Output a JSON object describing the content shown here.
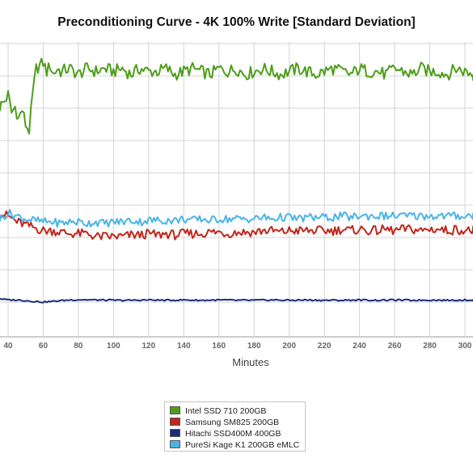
{
  "chart_data": {
    "type": "line",
    "title": "Preconditioning Curve - 4K 100% Write [Standard Deviation]",
    "xlabel": "Minutes",
    "ylabel": "",
    "x_ticks": [
      40,
      60,
      80,
      100,
      120,
      140,
      160,
      180,
      200,
      220,
      240,
      260,
      280,
      300
    ],
    "xlim": [
      35,
      310
    ],
    "ylim": [
      0,
      100
    ],
    "grid": true,
    "legend_position": "bottom",
    "series": [
      {
        "name": "Intel SSD 710 200GB",
        "color": "#4d9e1a",
        "points": [
          [
            35,
            78
          ],
          [
            38,
            80
          ],
          [
            40,
            82
          ],
          [
            42,
            76
          ],
          [
            44,
            78
          ],
          [
            46,
            74
          ],
          [
            48,
            77
          ],
          [
            50,
            72
          ],
          [
            52,
            70
          ],
          [
            54,
            82
          ],
          [
            56,
            91
          ],
          [
            58,
            92
          ],
          [
            60,
            93
          ],
          [
            62,
            90
          ],
          [
            64,
            92
          ],
          [
            66,
            89
          ],
          [
            68,
            91
          ],
          [
            70,
            90
          ],
          [
            75,
            91
          ],
          [
            80,
            89
          ],
          [
            85,
            91
          ],
          [
            90,
            90
          ],
          [
            95,
            91
          ],
          [
            100,
            90
          ],
          [
            105,
            91
          ],
          [
            110,
            89
          ],
          [
            115,
            91
          ],
          [
            120,
            90
          ],
          [
            125,
            90
          ],
          [
            130,
            91
          ],
          [
            135,
            89
          ],
          [
            140,
            90
          ],
          [
            145,
            91
          ],
          [
            150,
            90
          ],
          [
            155,
            89
          ],
          [
            160,
            91
          ],
          [
            165,
            90
          ],
          [
            170,
            91
          ],
          [
            175,
            89
          ],
          [
            180,
            90
          ],
          [
            185,
            91
          ],
          [
            190,
            90
          ],
          [
            195,
            89
          ],
          [
            200,
            90
          ],
          [
            205,
            91
          ],
          [
            210,
            90
          ],
          [
            215,
            89
          ],
          [
            220,
            90
          ],
          [
            225,
            91
          ],
          [
            230,
            90
          ],
          [
            235,
            89
          ],
          [
            240,
            91
          ],
          [
            245,
            90
          ],
          [
            250,
            90
          ],
          [
            255,
            89
          ],
          [
            260,
            91
          ],
          [
            265,
            90
          ],
          [
            270,
            89
          ],
          [
            275,
            91
          ],
          [
            280,
            90
          ],
          [
            285,
            90
          ],
          [
            290,
            89
          ],
          [
            295,
            91
          ],
          [
            300,
            90
          ],
          [
            305,
            89
          ],
          [
            310,
            89
          ]
        ]
      },
      {
        "name": "Samsung SM825 200GB",
        "color": "#c0261c",
        "points": [
          [
            35,
            42
          ],
          [
            40,
            41
          ],
          [
            45,
            39
          ],
          [
            50,
            38
          ],
          [
            55,
            37
          ],
          [
            60,
            36
          ],
          [
            65,
            36
          ],
          [
            70,
            35.5
          ],
          [
            75,
            35
          ],
          [
            80,
            35
          ],
          [
            85,
            35
          ],
          [
            90,
            34
          ],
          [
            95,
            34
          ],
          [
            100,
            34
          ],
          [
            105,
            34
          ],
          [
            110,
            34.5
          ],
          [
            115,
            34.5
          ],
          [
            120,
            35
          ],
          [
            125,
            34.5
          ],
          [
            130,
            35
          ],
          [
            135,
            34.5
          ],
          [
            140,
            35
          ],
          [
            145,
            35
          ],
          [
            150,
            35
          ],
          [
            155,
            35.5
          ],
          [
            160,
            35.5
          ],
          [
            165,
            35
          ],
          [
            170,
            35.5
          ],
          [
            175,
            35.5
          ],
          [
            180,
            35.5
          ],
          [
            185,
            36
          ],
          [
            190,
            36
          ],
          [
            195,
            35.5
          ],
          [
            200,
            36
          ],
          [
            205,
            36
          ],
          [
            210,
            36
          ],
          [
            215,
            36
          ],
          [
            220,
            36
          ],
          [
            225,
            36
          ],
          [
            230,
            36.5
          ],
          [
            235,
            36
          ],
          [
            240,
            36.5
          ],
          [
            245,
            36
          ],
          [
            250,
            36
          ],
          [
            255,
            36.5
          ],
          [
            260,
            36
          ],
          [
            265,
            36.5
          ],
          [
            270,
            36.5
          ],
          [
            275,
            36
          ],
          [
            280,
            36.5
          ],
          [
            285,
            36.5
          ],
          [
            290,
            36
          ],
          [
            295,
            36.5
          ],
          [
            300,
            36
          ],
          [
            305,
            36
          ],
          [
            310,
            35.5
          ]
        ]
      },
      {
        "name": "Hitachi SSD400M 400GB",
        "color": "#1a2d7a",
        "points": [
          [
            35,
            13
          ],
          [
            40,
            12.5
          ],
          [
            45,
            12.5
          ],
          [
            50,
            12.3
          ],
          [
            55,
            12
          ],
          [
            60,
            11.8
          ],
          [
            65,
            12
          ],
          [
            70,
            12.3
          ],
          [
            75,
            12.5
          ],
          [
            80,
            12.6
          ],
          [
            90,
            12.5
          ],
          [
            100,
            12.4
          ],
          [
            110,
            12.4
          ],
          [
            120,
            12.5
          ],
          [
            130,
            12.4
          ],
          [
            140,
            12.5
          ],
          [
            150,
            12.4
          ],
          [
            160,
            12.5
          ],
          [
            170,
            12.4
          ],
          [
            180,
            12.4
          ],
          [
            190,
            12.5
          ],
          [
            200,
            12.4
          ],
          [
            210,
            12.5
          ],
          [
            220,
            12.4
          ],
          [
            230,
            12.4
          ],
          [
            240,
            12.5
          ],
          [
            250,
            12.4
          ],
          [
            260,
            12.5
          ],
          [
            270,
            12.4
          ],
          [
            280,
            12.5
          ],
          [
            290,
            12.4
          ],
          [
            300,
            12.5
          ],
          [
            310,
            12.4
          ]
        ]
      },
      {
        "name": "PureSi Kage K1 200GB eMLC",
        "color": "#4ab4e6",
        "points": [
          [
            35,
            40
          ],
          [
            40,
            42
          ],
          [
            45,
            41
          ],
          [
            50,
            40
          ],
          [
            55,
            39.5
          ],
          [
            60,
            39
          ],
          [
            65,
            39
          ],
          [
            70,
            38.5
          ],
          [
            75,
            39
          ],
          [
            80,
            39
          ],
          [
            85,
            38.5
          ],
          [
            90,
            39
          ],
          [
            95,
            38.5
          ],
          [
            100,
            39
          ],
          [
            105,
            39
          ],
          [
            110,
            39.5
          ],
          [
            115,
            39
          ],
          [
            120,
            39.5
          ],
          [
            125,
            39.5
          ],
          [
            130,
            39.5
          ],
          [
            135,
            39.5
          ],
          [
            140,
            40
          ],
          [
            145,
            39.5
          ],
          [
            150,
            40
          ],
          [
            155,
            39.5
          ],
          [
            160,
            40
          ],
          [
            165,
            40
          ],
          [
            170,
            40
          ],
          [
            175,
            40
          ],
          [
            180,
            40
          ],
          [
            185,
            40.5
          ],
          [
            190,
            40
          ],
          [
            195,
            40.5
          ],
          [
            200,
            40.5
          ],
          [
            205,
            40
          ],
          [
            210,
            40.5
          ],
          [
            215,
            40.5
          ],
          [
            220,
            40.5
          ],
          [
            225,
            40.5
          ],
          [
            230,
            41
          ],
          [
            235,
            40.5
          ],
          [
            240,
            41
          ],
          [
            245,
            41
          ],
          [
            250,
            41
          ],
          [
            255,
            41
          ],
          [
            260,
            41
          ],
          [
            265,
            41
          ],
          [
            270,
            41
          ],
          [
            275,
            41
          ],
          [
            280,
            41
          ],
          [
            285,
            41
          ],
          [
            290,
            41
          ],
          [
            295,
            41
          ],
          [
            300,
            41
          ],
          [
            305,
            41
          ],
          [
            310,
            41
          ]
        ]
      }
    ]
  }
}
